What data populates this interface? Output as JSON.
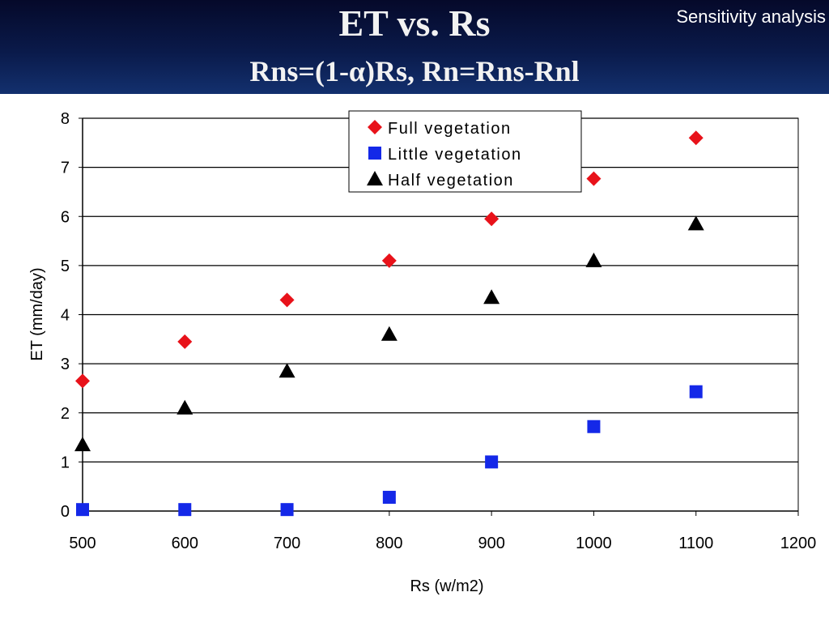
{
  "slide": {
    "title": "ET vs. Rs",
    "subtitle": "Rns=(1-α)Rs, Rn=Rns-Rnl",
    "corner_label": "Sensitivity analysis"
  },
  "chart_data": {
    "type": "scatter",
    "title": "",
    "xlabel": "Rs (w/m2)",
    "ylabel": "ET (mm/day)",
    "xlim": [
      500,
      1200
    ],
    "ylim": [
      0,
      8
    ],
    "xticks": [
      500,
      600,
      700,
      800,
      900,
      1000,
      1100,
      1200
    ],
    "yticks": [
      0,
      1,
      2,
      3,
      4,
      5,
      6,
      7,
      8
    ],
    "grid": "horizontal",
    "legend_position": "top-center",
    "series": [
      {
        "name": "Full vegetation",
        "marker": "diamond",
        "color": "#e8121a",
        "x": [
          500,
          600,
          700,
          800,
          900,
          1000,
          1100
        ],
        "y": [
          2.65,
          3.45,
          4.3,
          5.1,
          5.95,
          6.77,
          7.6
        ]
      },
      {
        "name": "Little vegetation",
        "marker": "square",
        "color": "#1428e8",
        "x": [
          500,
          600,
          700,
          800,
          900,
          1000,
          1100
        ],
        "y": [
          0.03,
          0.03,
          0.03,
          0.28,
          1.0,
          1.72,
          2.43
        ]
      },
      {
        "name": "Half vegetation",
        "marker": "triangle",
        "color": "#000000",
        "x": [
          500,
          600,
          700,
          800,
          900,
          1000,
          1100
        ],
        "y": [
          1.35,
          2.1,
          2.85,
          3.6,
          4.35,
          5.1,
          5.85
        ]
      }
    ]
  }
}
